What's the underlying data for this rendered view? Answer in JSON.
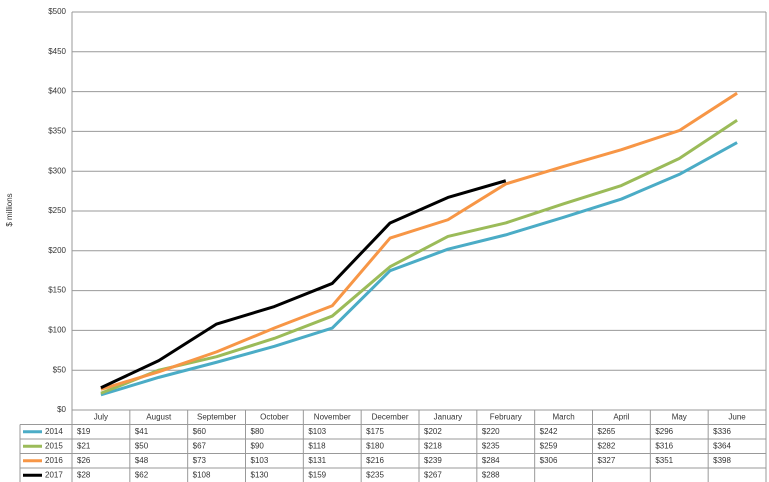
{
  "chart_data": {
    "type": "line",
    "y_label": "$ millions",
    "categories": [
      "July",
      "August",
      "September",
      "October",
      "November",
      "December",
      "January",
      "February",
      "March",
      "April",
      "May",
      "June"
    ],
    "series": [
      {
        "name": "2014",
        "color": "#4bacc6",
        "values": [
          19,
          41,
          60,
          80,
          103,
          175,
          202,
          220,
          242,
          265,
          296,
          336
        ],
        "value_labels": [
          "$19",
          "$41",
          "$60",
          "$80",
          "$103",
          "$175",
          "$202",
          "$220",
          "$242",
          "$265",
          "$296",
          "$336"
        ]
      },
      {
        "name": "2015",
        "color": "#9bbb59",
        "values": [
          21,
          50,
          67,
          90,
          118,
          180,
          218,
          235,
          259,
          282,
          316,
          364
        ],
        "value_labels": [
          "$21",
          "$50",
          "$67",
          "$90",
          "$118",
          "$180",
          "$218",
          "$235",
          "$259",
          "$282",
          "$316",
          "$364"
        ]
      },
      {
        "name": "2016",
        "color": "#f79646",
        "values": [
          26,
          48,
          73,
          103,
          131,
          216,
          239,
          284,
          306,
          327,
          351,
          398
        ],
        "value_labels": [
          "$26",
          "$48",
          "$73",
          "$103",
          "$131",
          "$216",
          "$239",
          "$284",
          "$306",
          "$327",
          "$351",
          "$398"
        ]
      },
      {
        "name": "2017",
        "color": "#000000",
        "values": [
          28,
          62,
          108,
          130,
          159,
          235,
          267,
          288,
          null,
          null,
          null,
          null
        ],
        "value_labels": [
          "$28",
          "$62",
          "$108",
          "$130",
          "$159",
          "$235",
          "$267",
          "$288",
          null,
          null,
          null,
          null
        ]
      }
    ],
    "ylim": [
      0,
      500
    ],
    "yticks": [
      {
        "value": 0,
        "label": "$0"
      },
      {
        "value": 50,
        "label": "$50"
      },
      {
        "value": 100,
        "label": "$100"
      },
      {
        "value": 150,
        "label": "$150"
      },
      {
        "value": 200,
        "label": "$200"
      },
      {
        "value": 250,
        "label": "$250"
      },
      {
        "value": 300,
        "label": "$300"
      },
      {
        "value": 350,
        "label": "$350"
      },
      {
        "value": 400,
        "label": "$400"
      },
      {
        "value": 450,
        "label": "$450"
      },
      {
        "value": 500,
        "label": "$500"
      }
    ],
    "grid": true
  }
}
